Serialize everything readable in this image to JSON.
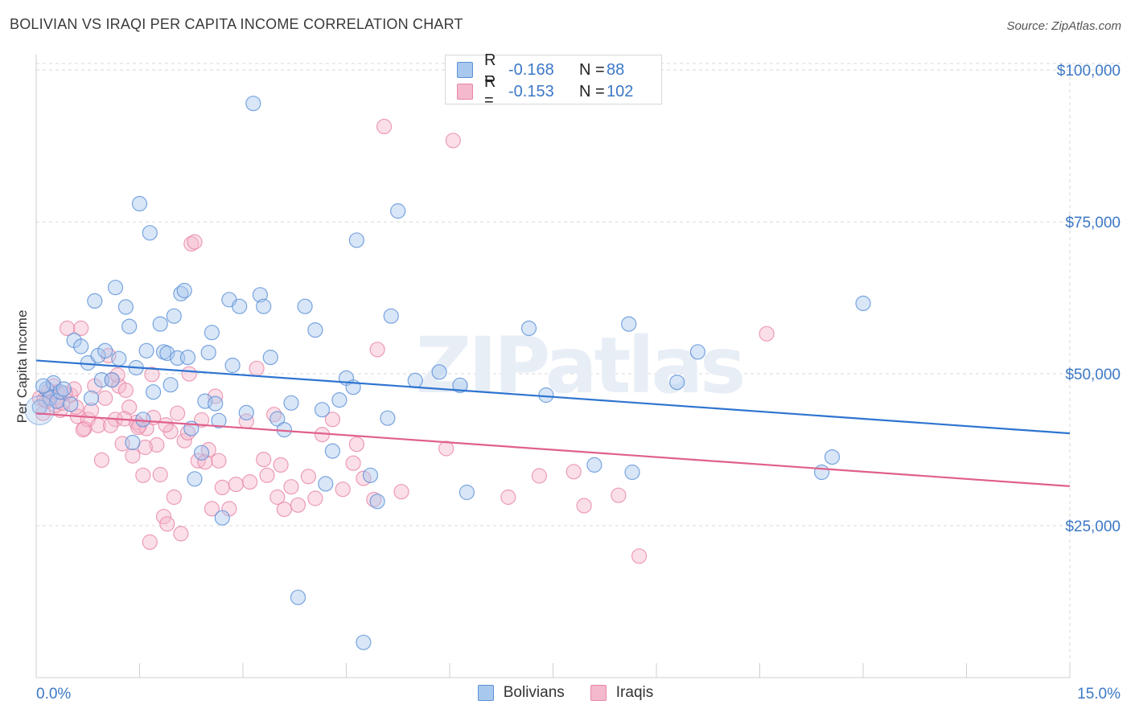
{
  "header": {
    "title": "BOLIVIAN VS IRAQI PER CAPITA INCOME CORRELATION CHART",
    "source": "Source: ZipAtlas.com"
  },
  "watermark": "ZIPatlas",
  "colors": {
    "blue_fill": "#a9c8ee",
    "blue_stroke": "#5b90d8",
    "blue_line": "#2e74d0",
    "pink_fill": "#f4b9cc",
    "pink_stroke": "#e886a6",
    "pink_line": "#e0608c",
    "tick_label": "#3b78c6",
    "grid": "#d9d9d9"
  },
  "legend": {
    "rows": [
      {
        "r_label": "R =",
        "r_value": "-0.168",
        "n_label": "N =",
        "n_value": "88"
      },
      {
        "r_label": "R =",
        "r_value": "-0.153",
        "n_label": "N =",
        "n_value": "102"
      }
    ]
  },
  "chart_data": {
    "type": "scatter",
    "title": "BOLIVIAN VS IRAQI PER CAPITA INCOME CORRELATION CHART",
    "xlabel": "",
    "ylabel": "Per Capita Income",
    "xlim": [
      0,
      15
    ],
    "ylim": [
      0,
      102000
    ],
    "x_tick_labels": [
      "0.0%",
      "15.0%"
    ],
    "y_ticks": [
      25000,
      50000,
      75000,
      100000
    ],
    "y_tick_labels": [
      "$25,000",
      "$50,000",
      "$75,000",
      "$100,000"
    ],
    "grid": true,
    "legend_position": "top-center",
    "series": [
      {
        "name": "Bolivians",
        "color": "blue",
        "trend": [
          [
            0,
            52200
          ],
          [
            15,
            40200
          ]
        ],
        "points": [
          [
            0.05,
            44500
          ],
          [
            0.15,
            47500
          ],
          [
            0.2,
            46000
          ],
          [
            0.25,
            48500
          ],
          [
            0.3,
            45500
          ],
          [
            0.35,
            47000
          ],
          [
            0.5,
            45000
          ],
          [
            0.55,
            55500
          ],
          [
            0.65,
            54500
          ],
          [
            0.75,
            51800
          ],
          [
            0.8,
            46000
          ],
          [
            0.85,
            62000
          ],
          [
            0.9,
            53000
          ],
          [
            0.95,
            49000
          ],
          [
            1.0,
            53800
          ],
          [
            1.1,
            49000
          ],
          [
            1.15,
            64200
          ],
          [
            1.2,
            52500
          ],
          [
            1.3,
            61000
          ],
          [
            1.35,
            57800
          ],
          [
            1.4,
            38700
          ],
          [
            1.45,
            51000
          ],
          [
            1.5,
            78000
          ],
          [
            1.55,
            42500
          ],
          [
            1.6,
            53800
          ],
          [
            1.65,
            73200
          ],
          [
            1.7,
            47000
          ],
          [
            1.8,
            58200
          ],
          [
            1.85,
            53600
          ],
          [
            1.9,
            53400
          ],
          [
            1.95,
            48200
          ],
          [
            2.0,
            59500
          ],
          [
            2.05,
            52600
          ],
          [
            2.1,
            63200
          ],
          [
            2.15,
            63700
          ],
          [
            2.2,
            52700
          ],
          [
            2.25,
            41000
          ],
          [
            2.3,
            32700
          ],
          [
            2.4,
            37000
          ],
          [
            2.45,
            45500
          ],
          [
            2.5,
            53500
          ],
          [
            2.55,
            56800
          ],
          [
            2.6,
            45100
          ],
          [
            2.65,
            42300
          ],
          [
            2.7,
            26300
          ],
          [
            2.8,
            62200
          ],
          [
            2.85,
            51400
          ],
          [
            2.95,
            61100
          ],
          [
            3.05,
            43600
          ],
          [
            3.15,
            94500
          ],
          [
            3.25,
            63000
          ],
          [
            3.3,
            61100
          ],
          [
            3.4,
            52700
          ],
          [
            3.5,
            42600
          ],
          [
            3.6,
            40800
          ],
          [
            3.7,
            45200
          ],
          [
            3.8,
            13200
          ],
          [
            3.9,
            61100
          ],
          [
            4.05,
            57200
          ],
          [
            4.15,
            44100
          ],
          [
            4.2,
            31900
          ],
          [
            4.3,
            37300
          ],
          [
            4.4,
            45700
          ],
          [
            4.5,
            49300
          ],
          [
            4.6,
            47800
          ],
          [
            4.65,
            72000
          ],
          [
            4.75,
            5800
          ],
          [
            4.85,
            33300
          ],
          [
            4.95,
            29000
          ],
          [
            5.1,
            42700
          ],
          [
            5.15,
            59500
          ],
          [
            5.25,
            76800
          ],
          [
            5.5,
            48900
          ],
          [
            5.85,
            50300
          ],
          [
            6.15,
            48100
          ],
          [
            6.25,
            30500
          ],
          [
            7.15,
            57500
          ],
          [
            7.4,
            46500
          ],
          [
            8.1,
            35000
          ],
          [
            8.6,
            58200
          ],
          [
            8.65,
            33800
          ],
          [
            9.3,
            48600
          ],
          [
            9.6,
            53600
          ],
          [
            11.4,
            33800
          ],
          [
            11.55,
            36300
          ],
          [
            12.0,
            61600
          ],
          [
            0.1,
            48000
          ],
          [
            0.4,
            47500
          ]
        ]
      },
      {
        "name": "Iraqis",
        "color": "pink",
        "trend": [
          [
            0,
            43500
          ],
          [
            15,
            31500
          ]
        ],
        "points": [
          [
            0.05,
            46000
          ],
          [
            0.1,
            43500
          ],
          [
            0.15,
            45500
          ],
          [
            0.2,
            46500
          ],
          [
            0.25,
            48000
          ],
          [
            0.3,
            47000
          ],
          [
            0.35,
            44000
          ],
          [
            0.45,
            57500
          ],
          [
            0.5,
            46500
          ],
          [
            0.55,
            47500
          ],
          [
            0.6,
            43000
          ],
          [
            0.65,
            57500
          ],
          [
            0.7,
            41000
          ],
          [
            0.75,
            42500
          ],
          [
            0.8,
            44000
          ],
          [
            0.85,
            48000
          ],
          [
            0.9,
            41500
          ],
          [
            0.95,
            35800
          ],
          [
            1.0,
            46000
          ],
          [
            1.05,
            53000
          ],
          [
            1.1,
            49000
          ],
          [
            1.15,
            42500
          ],
          [
            1.2,
            48000
          ],
          [
            1.25,
            38500
          ],
          [
            1.3,
            47300
          ],
          [
            1.35,
            44500
          ],
          [
            1.4,
            36500
          ],
          [
            1.45,
            42000
          ],
          [
            1.5,
            41500
          ],
          [
            1.55,
            33300
          ],
          [
            1.6,
            41000
          ],
          [
            1.65,
            22300
          ],
          [
            1.7,
            42800
          ],
          [
            1.75,
            38300
          ],
          [
            1.8,
            33400
          ],
          [
            1.85,
            26500
          ],
          [
            1.9,
            25300
          ],
          [
            1.95,
            40500
          ],
          [
            2.0,
            29700
          ],
          [
            2.05,
            43500
          ],
          [
            2.1,
            23700
          ],
          [
            2.15,
            39000
          ],
          [
            2.2,
            40300
          ],
          [
            2.25,
            71400
          ],
          [
            2.3,
            71700
          ],
          [
            2.35,
            35700
          ],
          [
            2.4,
            42400
          ],
          [
            2.45,
            35500
          ],
          [
            2.5,
            37500
          ],
          [
            2.55,
            27800
          ],
          [
            2.6,
            46300
          ],
          [
            2.65,
            35700
          ],
          [
            2.7,
            31300
          ],
          [
            2.8,
            27800
          ],
          [
            2.9,
            31800
          ],
          [
            3.05,
            42200
          ],
          [
            3.1,
            32200
          ],
          [
            3.2,
            50900
          ],
          [
            3.3,
            35900
          ],
          [
            3.35,
            33300
          ],
          [
            3.45,
            43300
          ],
          [
            3.5,
            29700
          ],
          [
            3.55,
            35000
          ],
          [
            3.6,
            27700
          ],
          [
            3.7,
            31400
          ],
          [
            3.8,
            28400
          ],
          [
            3.95,
            33100
          ],
          [
            4.05,
            29500
          ],
          [
            4.15,
            40000
          ],
          [
            4.3,
            42500
          ],
          [
            4.45,
            31000
          ],
          [
            4.6,
            35300
          ],
          [
            4.65,
            38400
          ],
          [
            4.75,
            32800
          ],
          [
            4.9,
            29300
          ],
          [
            4.95,
            54000
          ],
          [
            5.05,
            90700
          ],
          [
            5.3,
            30600
          ],
          [
            5.95,
            37700
          ],
          [
            6.05,
            88400
          ],
          [
            6.85,
            29700
          ],
          [
            7.3,
            33200
          ],
          [
            7.8,
            33900
          ],
          [
            7.95,
            28300
          ],
          [
            8.45,
            30000
          ],
          [
            8.75,
            20000
          ],
          [
            10.6,
            56600
          ],
          [
            0.12,
            45800
          ],
          [
            0.18,
            47200
          ],
          [
            0.28,
            44800
          ],
          [
            0.38,
            45200
          ],
          [
            0.42,
            46800
          ],
          [
            0.58,
            44500
          ],
          [
            0.68,
            40800
          ],
          [
            1.08,
            41500
          ],
          [
            1.18,
            49800
          ],
          [
            1.28,
            42600
          ],
          [
            1.48,
            41200
          ],
          [
            1.58,
            37900
          ],
          [
            1.68,
            49900
          ],
          [
            1.88,
            41600
          ],
          [
            2.22,
            50000
          ]
        ]
      }
    ]
  }
}
